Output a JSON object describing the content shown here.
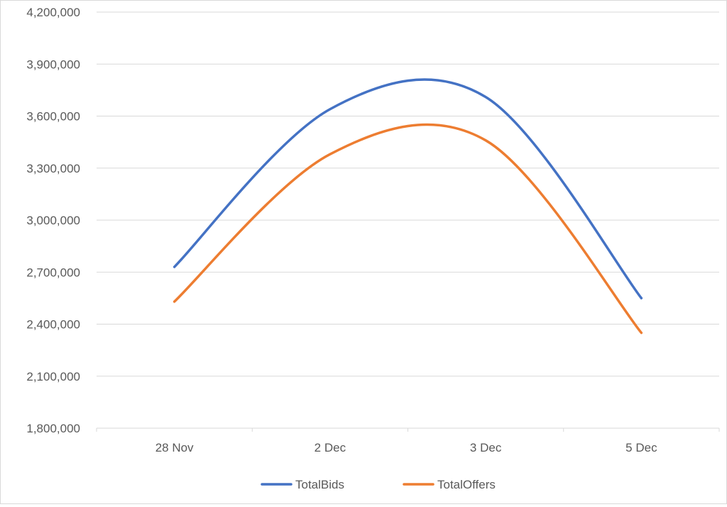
{
  "chart_data": {
    "type": "line",
    "smooth": true,
    "categories": [
      "28 Nov",
      "2 Dec",
      "3 Dec",
      "5 Dec"
    ],
    "x_tick_labels": [
      "28 Nov",
      "2 Dec",
      "3 Dec",
      "5 Dec"
    ],
    "ylim": [
      1800000,
      4200000
    ],
    "y_ticks": [
      1800000,
      2100000,
      2400000,
      2700000,
      3000000,
      3300000,
      3600000,
      3900000,
      4200000
    ],
    "y_tick_labels": [
      "1,800,000",
      "2,100,000",
      "2,400,000",
      "2,700,000",
      "3,000,000",
      "3,300,000",
      "3,600,000",
      "3,900,000",
      "4,200,000"
    ],
    "grid": true,
    "legend_position": "bottom",
    "series": [
      {
        "name": "TotalBids",
        "color": "#4472c4",
        "values": [
          2730000,
          3640000,
          3710000,
          2550000
        ]
      },
      {
        "name": "TotalOffers",
        "color": "#ed7d31",
        "values": [
          2530000,
          3380000,
          3460000,
          2350000
        ]
      }
    ]
  }
}
